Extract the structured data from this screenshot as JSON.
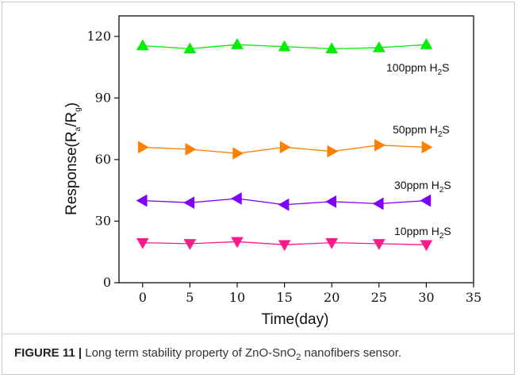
{
  "caption": {
    "figure_label": "FIGURE 11",
    "separator": "|",
    "text_before": "Long term stability property of ZnO-SnO",
    "text_sub": "2",
    "text_after": " nanofibers sensor."
  },
  "chart_data": {
    "type": "line",
    "title": "",
    "xlabel": "Time(day)",
    "ylabel": "Response(R",
    "ylabel_sub_a": "a",
    "ylabel_mid": "/R",
    "ylabel_sub_g": "g",
    "ylabel_end": ")",
    "xlim": [
      -2.5,
      35
    ],
    "ylim": [
      0,
      130
    ],
    "xticks": [
      0,
      5,
      10,
      15,
      20,
      25,
      30,
      35
    ],
    "yticks": [
      0,
      30,
      60,
      90,
      120
    ],
    "grid": false,
    "legend": "inline-labels",
    "x": [
      0,
      5,
      10,
      15,
      20,
      25,
      30
    ],
    "series": [
      {
        "name": "100ppm H2S",
        "label_main": "100ppm H",
        "label_sub": "2",
        "label_end": "S",
        "color": "#00ee00",
        "marker": "triangle-up",
        "values": [
          115.5,
          114,
          116,
          115,
          114,
          114.5,
          116
        ]
      },
      {
        "name": "50ppm H2S",
        "label_main": "50ppm H",
        "label_sub": "2",
        "label_end": "S",
        "color": "#ff8000",
        "marker": "triangle-right",
        "values": [
          66,
          65,
          63,
          66,
          64,
          67,
          66
        ]
      },
      {
        "name": "30ppm H2S",
        "label_main": "30ppm H",
        "label_sub": "2",
        "label_end": "S",
        "color": "#8000ff",
        "marker": "triangle-left",
        "values": [
          40,
          39,
          41,
          38,
          39.5,
          38.5,
          40
        ]
      },
      {
        "name": "10ppm H2S",
        "label_main": "10ppm H",
        "label_sub": "2",
        "label_end": "S",
        "color": "#ff1a8c",
        "marker": "triangle-down",
        "values": [
          19.5,
          19,
          20,
          18.5,
          19.5,
          19,
          18.5
        ]
      }
    ]
  }
}
